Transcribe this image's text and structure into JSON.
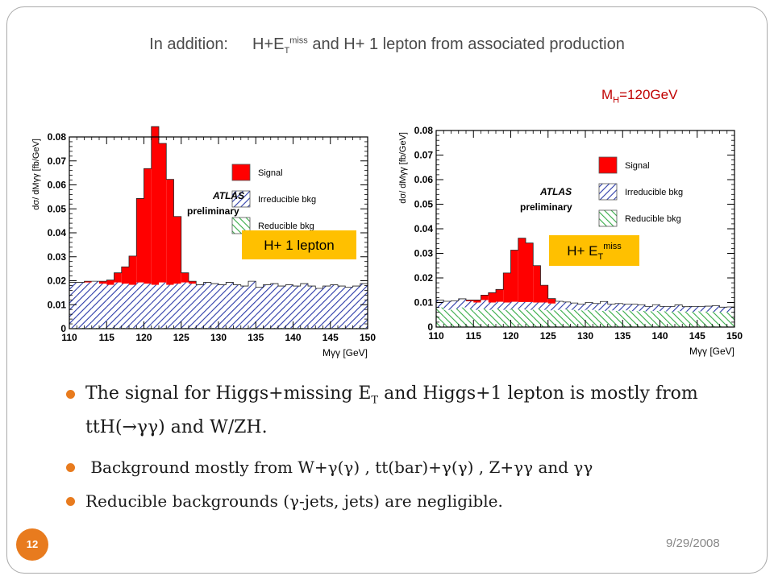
{
  "slide": {
    "title_prefix": "In addition:",
    "title_main_1": "H+E",
    "title_sub": "T",
    "title_sup": "miss",
    "title_main_2": " and H+ 1 lepton from associated production",
    "mh_label": "M",
    "mh_sub": "H",
    "mh_value": "=120GeV",
    "date": "9/29/2008",
    "page_number": "12",
    "bullets": {
      "b1_part1": "The signal for Higgs+missing E",
      "b1_sub": "T",
      "b1_part2": " and Higgs+1 lepton  is mostly from ttH(→γγ) and W/ZH.",
      "b2": "Background mostly from W+γ(γ) , tt(bar)+γ(γ) , Z+γγ and γγ",
      "b3": "Reducible backgrounds (γ-jets, jets) are negligible."
    }
  },
  "colors": {
    "signal": "#ff0000",
    "irreducible": "#2b3aa8",
    "reducible": "#33aa44",
    "callout": "#ffc000",
    "accent": "#e87b1e"
  },
  "chart_data": [
    {
      "type": "bar",
      "title": "",
      "ylabel": "dσ/ dMγγ [fb/GeV]",
      "xlabel": "Mγγ [GeV]",
      "xlim": [
        110,
        150
      ],
      "ylim": [
        0,
        0.08
      ],
      "xticks": [
        "110",
        "115",
        "120",
        "125",
        "130",
        "135",
        "140",
        "145",
        "150"
      ],
      "yticks": [
        "0",
        "0.01",
        "0.02",
        "0.03",
        "0.04",
        "0.05",
        "0.06",
        "0.07",
        "0.08"
      ],
      "experiment": "ATLAS",
      "status": "preliminary",
      "channel_label": "H+ 1 lepton",
      "legend": [
        "Signal",
        "Irreducible bkg",
        "Reducible bkg"
      ],
      "legend_position": "top-right",
      "bin_width": 1,
      "series": [
        {
          "name": "Reducible bkg",
          "values": [
            0.0003,
            0.0003,
            0.0003,
            0.0003,
            0.0003,
            0.0003,
            0.0003,
            0.0003,
            0.0003,
            0.0003,
            0.0003,
            0.0003,
            0.0003,
            0.0003,
            0.0003,
            0.0003,
            0.0003,
            0.0003,
            0.0003,
            0.0003,
            0.0003,
            0.0003,
            0.0003,
            0.0003,
            0.0003,
            0.0003,
            0.0003,
            0.0003,
            0.0003,
            0.0003,
            0.0003,
            0.0003,
            0.0003,
            0.0003,
            0.0003,
            0.0003,
            0.0003,
            0.0003,
            0.0003,
            0.0003
          ]
        },
        {
          "name": "Irreducible bkg",
          "values": [
            0.019,
            0.019,
            0.019,
            0.0195,
            0.0185,
            0.018,
            0.019,
            0.0185,
            0.018,
            0.019,
            0.0185,
            0.018,
            0.019,
            0.018,
            0.0185,
            0.019,
            0.0185,
            0.018,
            0.019,
            0.0185,
            0.018,
            0.019,
            0.018,
            0.0175,
            0.0195,
            0.017,
            0.018,
            0.0185,
            0.0175,
            0.018,
            0.0175,
            0.0185,
            0.0175,
            0.0165,
            0.0175,
            0.018,
            0.0175,
            0.017,
            0.0175,
            0.0185
          ]
        },
        {
          "name": "Signal",
          "values": [
            0,
            0,
            0.0005,
            0,
            0.001,
            0.002,
            0.004,
            0.007,
            0.012,
            0.035,
            0.048,
            0.066,
            0.058,
            0.044,
            0.028,
            0.004,
            0.001,
            0,
            0,
            0,
            0,
            0,
            0,
            0,
            0,
            0,
            0,
            0,
            0,
            0,
            0,
            0,
            0,
            0,
            0,
            0,
            0,
            0,
            0,
            0
          ]
        }
      ]
    },
    {
      "type": "bar",
      "title": "",
      "ylabel": "dσ/ dMγγ [fb/GeV]",
      "xlabel": "Mγγ [GeV]",
      "xlim": [
        110,
        150
      ],
      "ylim": [
        0,
        0.08
      ],
      "xticks": [
        "110",
        "115",
        "120",
        "125",
        "130",
        "135",
        "140",
        "145",
        "150"
      ],
      "yticks": [
        "0",
        "0.01",
        "0.02",
        "0.03",
        "0.04",
        "0.05",
        "0.06",
        "0.07",
        "0.08"
      ],
      "experiment": "ATLAS",
      "status": "preliminary",
      "channel_label_main": "H+ E",
      "channel_label_sub": "T",
      "channel_label_sup": "miss",
      "legend": [
        "Signal",
        "Irreducible bkg",
        "Reducible bkg"
      ],
      "legend_position": "top-right",
      "bin_width": 1,
      "series": [
        {
          "name": "Reducible bkg",
          "values": [
            0.008,
            0.007,
            0.0075,
            0.008,
            0.0075,
            0.007,
            0.0075,
            0.007,
            0.0075,
            0.007,
            0.0075,
            0.0072,
            0.007,
            0.0075,
            0.007,
            0.0068,
            0.007,
            0.0072,
            0.007,
            0.0068,
            0.007,
            0.0068,
            0.0066,
            0.0068,
            0.0066,
            0.0068,
            0.0065,
            0.0066,
            0.0064,
            0.0066,
            0.0064,
            0.0062,
            0.0065,
            0.0063,
            0.0062,
            0.0064,
            0.0063,
            0.0062,
            0.0061,
            0.006
          ]
        },
        {
          "name": "Irreducible bkg",
          "values": [
            0.003,
            0.0035,
            0.0032,
            0.0035,
            0.003,
            0.003,
            0.0035,
            0.003,
            0.0028,
            0.003,
            0.0028,
            0.003,
            0.0032,
            0.0025,
            0.003,
            0.0028,
            0.0035,
            0.003,
            0.0028,
            0.0025,
            0.003,
            0.0028,
            0.0038,
            0.0025,
            0.003,
            0.0025,
            0.0028,
            0.0025,
            0.002,
            0.0025,
            0.002,
            0.0022,
            0.0025,
            0.002,
            0.0022,
            0.002,
            0.0022,
            0.0025,
            0.002,
            0.0022
          ]
        },
        {
          "name": "Signal",
          "values": [
            0,
            0,
            0,
            0,
            0.0005,
            0.001,
            0.002,
            0.004,
            0.005,
            0.012,
            0.021,
            0.026,
            0.024,
            0.015,
            0.007,
            0.002,
            0,
            0,
            0,
            0,
            0,
            0,
            0,
            0,
            0,
            0,
            0,
            0,
            0,
            0,
            0,
            0,
            0,
            0,
            0,
            0,
            0,
            0,
            0,
            0
          ]
        }
      ]
    }
  ]
}
